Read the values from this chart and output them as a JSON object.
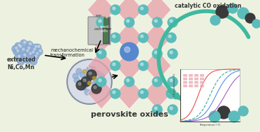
{
  "bg_color": "#edf2e0",
  "perovskite_pink": "#e8a0a8",
  "perovskite_teal": "#5bbcbb",
  "perovskite_blue_center": "#5588cc",
  "extracted_blue": "#8aaad0",
  "ball_dark": "#3a3a3a",
  "ball_teal": "#5bbcbb",
  "arrow_teal": "#40b8a0",
  "title": "perovskite oxides",
  "text_extracted": "extracted\nNi,Co,Mn",
  "text_mech": "mechanochemical\ntransformation",
  "text_cat": "catalytic CO oxidation",
  "graph_line_red": "#e85050",
  "graph_line_blue": "#5090e8",
  "graph_line_purple": "#a060c0",
  "graph_line_teal": "#40a890"
}
